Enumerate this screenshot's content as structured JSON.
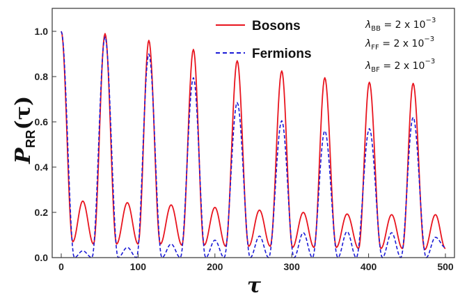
{
  "chart_data": {
    "type": "line",
    "xlabel": "τ",
    "ylabel_main": "P",
    "ylabel_sub": "RR",
    "ylabel_arg": "(τ)",
    "xlim": [
      0,
      500
    ],
    "ylim": [
      0.0,
      1.05
    ],
    "x_ticks": [
      0,
      100,
      200,
      300,
      400,
      500
    ],
    "x_tick_labels": [
      "0",
      "100",
      "200",
      "300",
      "400",
      "500"
    ],
    "y_ticks": [
      0.0,
      0.2,
      0.4,
      0.6,
      0.8,
      1.0
    ],
    "y_tick_labels": [
      "0.0",
      "0.2",
      "0.4",
      "0.6",
      "0.8",
      "1.0"
    ],
    "grid": false,
    "legend_position": "top-center",
    "params": [
      {
        "sym": "λ",
        "sub": "BB",
        "text": " =  2 x 10",
        "exp": "−3"
      },
      {
        "sym": "λ",
        "sub": "FF",
        "text": " =  2 x 10",
        "exp": "−3"
      },
      {
        "sym": "λ",
        "sub": "BF",
        "text": " =  2 x 10",
        "exp": "−3"
      }
    ],
    "series": [
      {
        "name": "Bosons",
        "color": "#e8141e",
        "style": "solid",
        "peaks": [
          {
            "x": 0,
            "y": 1.0
          },
          {
            "x": 57,
            "y": 0.99
          },
          {
            "x": 114,
            "y": 0.96
          },
          {
            "x": 172,
            "y": 0.92
          },
          {
            "x": 229,
            "y": 0.87
          },
          {
            "x": 287,
            "y": 0.825
          },
          {
            "x": 343,
            "y": 0.795
          },
          {
            "x": 401,
            "y": 0.775
          },
          {
            "x": 458,
            "y": 0.77
          }
        ],
        "minima": [
          {
            "x": 15,
            "y": 0.07
          },
          {
            "x": 42,
            "y": 0.06
          },
          {
            "x": 72,
            "y": 0.06
          },
          {
            "x": 100,
            "y": 0.06
          },
          {
            "x": 129,
            "y": 0.06
          },
          {
            "x": 157,
            "y": 0.055
          },
          {
            "x": 186,
            "y": 0.055
          },
          {
            "x": 214,
            "y": 0.05
          },
          {
            "x": 244,
            "y": 0.05
          },
          {
            "x": 272,
            "y": 0.05
          },
          {
            "x": 301,
            "y": 0.045
          },
          {
            "x": 329,
            "y": 0.045
          },
          {
            "x": 358,
            "y": 0.045
          },
          {
            "x": 387,
            "y": 0.04
          },
          {
            "x": 416,
            "y": 0.04
          },
          {
            "x": 444,
            "y": 0.04
          },
          {
            "x": 473,
            "y": 0.035
          }
        ],
        "humps": [
          {
            "x": 28,
            "y": 0.25
          },
          {
            "x": 86,
            "y": 0.243
          },
          {
            "x": 143,
            "y": 0.233
          },
          {
            "x": 200,
            "y": 0.222
          },
          {
            "x": 258,
            "y": 0.21
          },
          {
            "x": 315,
            "y": 0.2
          },
          {
            "x": 372,
            "y": 0.193
          },
          {
            "x": 430,
            "y": 0.19
          },
          {
            "x": 487,
            "y": 0.19
          }
        ],
        "end": {
          "x": 500,
          "y": 0.04
        }
      },
      {
        "name": "Fermions",
        "color": "#1a1ad6",
        "style": "dashed",
        "peaks": [
          {
            "x": 0,
            "y": 1.0
          },
          {
            "x": 57,
            "y": 0.975
          },
          {
            "x": 114,
            "y": 0.9
          },
          {
            "x": 172,
            "y": 0.795
          },
          {
            "x": 229,
            "y": 0.685
          },
          {
            "x": 287,
            "y": 0.605
          },
          {
            "x": 343,
            "y": 0.56
          },
          {
            "x": 401,
            "y": 0.57
          },
          {
            "x": 458,
            "y": 0.62
          }
        ],
        "minima": [
          {
            "x": 17,
            "y": 0.0
          },
          {
            "x": 40,
            "y": 0.0
          },
          {
            "x": 74,
            "y": 0.0
          },
          {
            "x": 98,
            "y": 0.0
          },
          {
            "x": 131,
            "y": 0.0
          },
          {
            "x": 155,
            "y": 0.0
          },
          {
            "x": 188,
            "y": 0.0
          },
          {
            "x": 212,
            "y": 0.0
          },
          {
            "x": 246,
            "y": 0.0
          },
          {
            "x": 270,
            "y": 0.0
          },
          {
            "x": 303,
            "y": 0.0
          },
          {
            "x": 327,
            "y": 0.0
          },
          {
            "x": 360,
            "y": 0.0
          },
          {
            "x": 384,
            "y": 0.0
          },
          {
            "x": 418,
            "y": 0.0
          },
          {
            "x": 442,
            "y": 0.0
          },
          {
            "x": 475,
            "y": 0.0
          }
        ],
        "humps": [
          {
            "x": 28,
            "y": 0.03
          },
          {
            "x": 86,
            "y": 0.045
          },
          {
            "x": 143,
            "y": 0.06
          },
          {
            "x": 200,
            "y": 0.077
          },
          {
            "x": 258,
            "y": 0.095
          },
          {
            "x": 315,
            "y": 0.11
          },
          {
            "x": 372,
            "y": 0.115
          },
          {
            "x": 430,
            "y": 0.11
          },
          {
            "x": 487,
            "y": 0.09
          }
        ],
        "end": {
          "x": 500,
          "y": 0.045
        }
      }
    ]
  }
}
